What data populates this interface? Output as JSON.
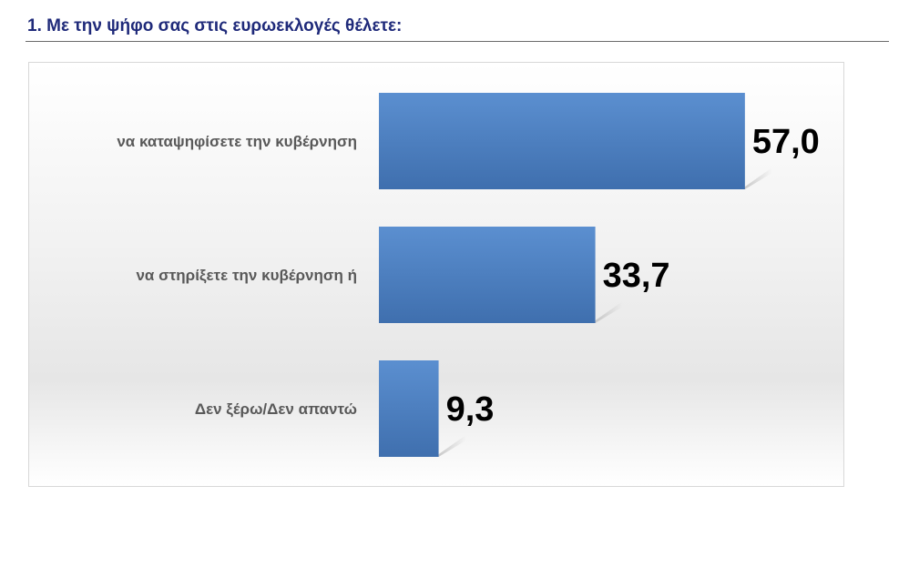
{
  "page": {
    "title": "1. Με την ψήφο σας στις ευρωεκλογές θέλετε:"
  },
  "chart_data": {
    "type": "bar",
    "orientation": "horizontal",
    "categories": [
      "να καταψηφίσετε την κυβέρνηση",
      "να στηρίξετε την κυβέρνηση ή",
      "Δεν ξέρω/Δεν απαντώ"
    ],
    "values": [
      57.0,
      33.7,
      9.3
    ],
    "value_labels": [
      "57,0",
      "33,7",
      "9,3"
    ],
    "xlim": [
      0,
      100
    ],
    "grid": false,
    "legend": "none",
    "bar_color": "#4a7ebb",
    "title": "",
    "xlabel": "",
    "ylabel": ""
  }
}
